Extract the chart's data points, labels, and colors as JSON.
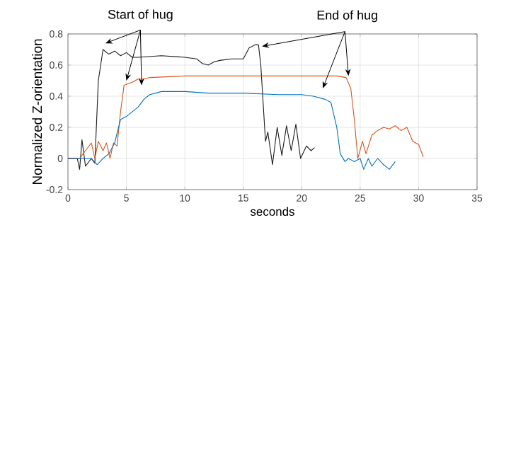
{
  "chart_data": {
    "type": "line",
    "xlabel": "seconds",
    "ylabel": "Normalized Z-orientation",
    "xlim": [
      0,
      35
    ],
    "ylim": [
      -0.2,
      0.8
    ],
    "xticks": [
      0,
      5,
      10,
      15,
      20,
      25,
      30,
      35
    ],
    "yticks": [
      -0.2,
      0,
      0.2,
      0.4,
      0.6,
      0.8
    ],
    "grid": true,
    "line_style": "solid",
    "marker": "none",
    "annotations": [
      {
        "text": "Start of hug",
        "x": 3.2,
        "y": 0.74
      },
      {
        "text": "End of hug",
        "x": 16.6,
        "y": 0.72
      }
    ],
    "series": [
      {
        "color": "#1a1a1a",
        "x": [
          0,
          0.8,
          1,
          1.2,
          1.5,
          2,
          2.3,
          2.6,
          3,
          3.5,
          4,
          4.5,
          5,
          5.5,
          6,
          8,
          10,
          11,
          11.5,
          12,
          12.5,
          13,
          14,
          15,
          15.5,
          16,
          16.3,
          16.5,
          16.9,
          17.1,
          17.5,
          17.9,
          18.3,
          18.7,
          19.1,
          19.5,
          19.9,
          20.4,
          20.8,
          21.1
        ],
        "values": [
          0,
          0,
          -0.07,
          0.12,
          -0.05,
          0,
          -0.03,
          0.5,
          0.7,
          0.67,
          0.69,
          0.66,
          0.68,
          0.65,
          0.65,
          0.66,
          0.65,
          0.64,
          0.61,
          0.6,
          0.62,
          0.63,
          0.64,
          0.64,
          0.71,
          0.73,
          0.73,
          0.6,
          0.11,
          0.17,
          -0.04,
          0.2,
          0.02,
          0.21,
          0.05,
          0.22,
          0,
          0.08,
          0.05,
          0.07
        ]
      },
      {
        "color": "#d95319",
        "x": [
          0,
          1,
          1.5,
          2,
          2.3,
          2.6,
          3,
          3.3,
          3.6,
          3.9,
          4.2,
          4.5,
          4.8,
          5.5,
          6,
          6.5,
          7,
          10,
          13,
          20,
          23,
          23.8,
          24.2,
          24.5,
          24.8,
          25.2,
          25.5,
          26,
          26.5,
          27,
          27.5,
          28,
          28.5,
          29,
          29.5,
          30,
          30.4
        ],
        "values": [
          0,
          0,
          0.05,
          0.1,
          0,
          0.11,
          0.05,
          0.1,
          0,
          0.1,
          0.08,
          0.3,
          0.47,
          0.49,
          0.51,
          0.51,
          0.52,
          0.53,
          0.53,
          0.53,
          0.53,
          0.52,
          0.45,
          0.25,
          0,
          0.11,
          0.03,
          0.15,
          0.18,
          0.2,
          0.19,
          0.21,
          0.18,
          0.2,
          0.11,
          0.09,
          0.01
        ]
      },
      {
        "color": "#0072bd",
        "x": [
          0,
          2,
          2.5,
          3,
          3.5,
          4,
          4.5,
          5,
          5.5,
          6,
          6.5,
          7,
          8,
          9,
          10,
          12,
          15,
          18,
          20,
          21,
          22,
          22.5,
          23,
          23.3,
          23.7,
          24,
          24.5,
          25,
          25.3,
          25.7,
          26,
          26.5,
          27,
          27.5,
          28
        ],
        "values": [
          0,
          0,
          -0.04,
          0,
          0.03,
          0.1,
          0.25,
          0.27,
          0.3,
          0.33,
          0.38,
          0.41,
          0.43,
          0.43,
          0.43,
          0.42,
          0.42,
          0.41,
          0.41,
          0.4,
          0.38,
          0.36,
          0.2,
          0.03,
          -0.02,
          0,
          -0.02,
          0,
          -0.07,
          0,
          -0.05,
          0,
          -0.04,
          -0.07,
          -0.02
        ]
      }
    ]
  }
}
